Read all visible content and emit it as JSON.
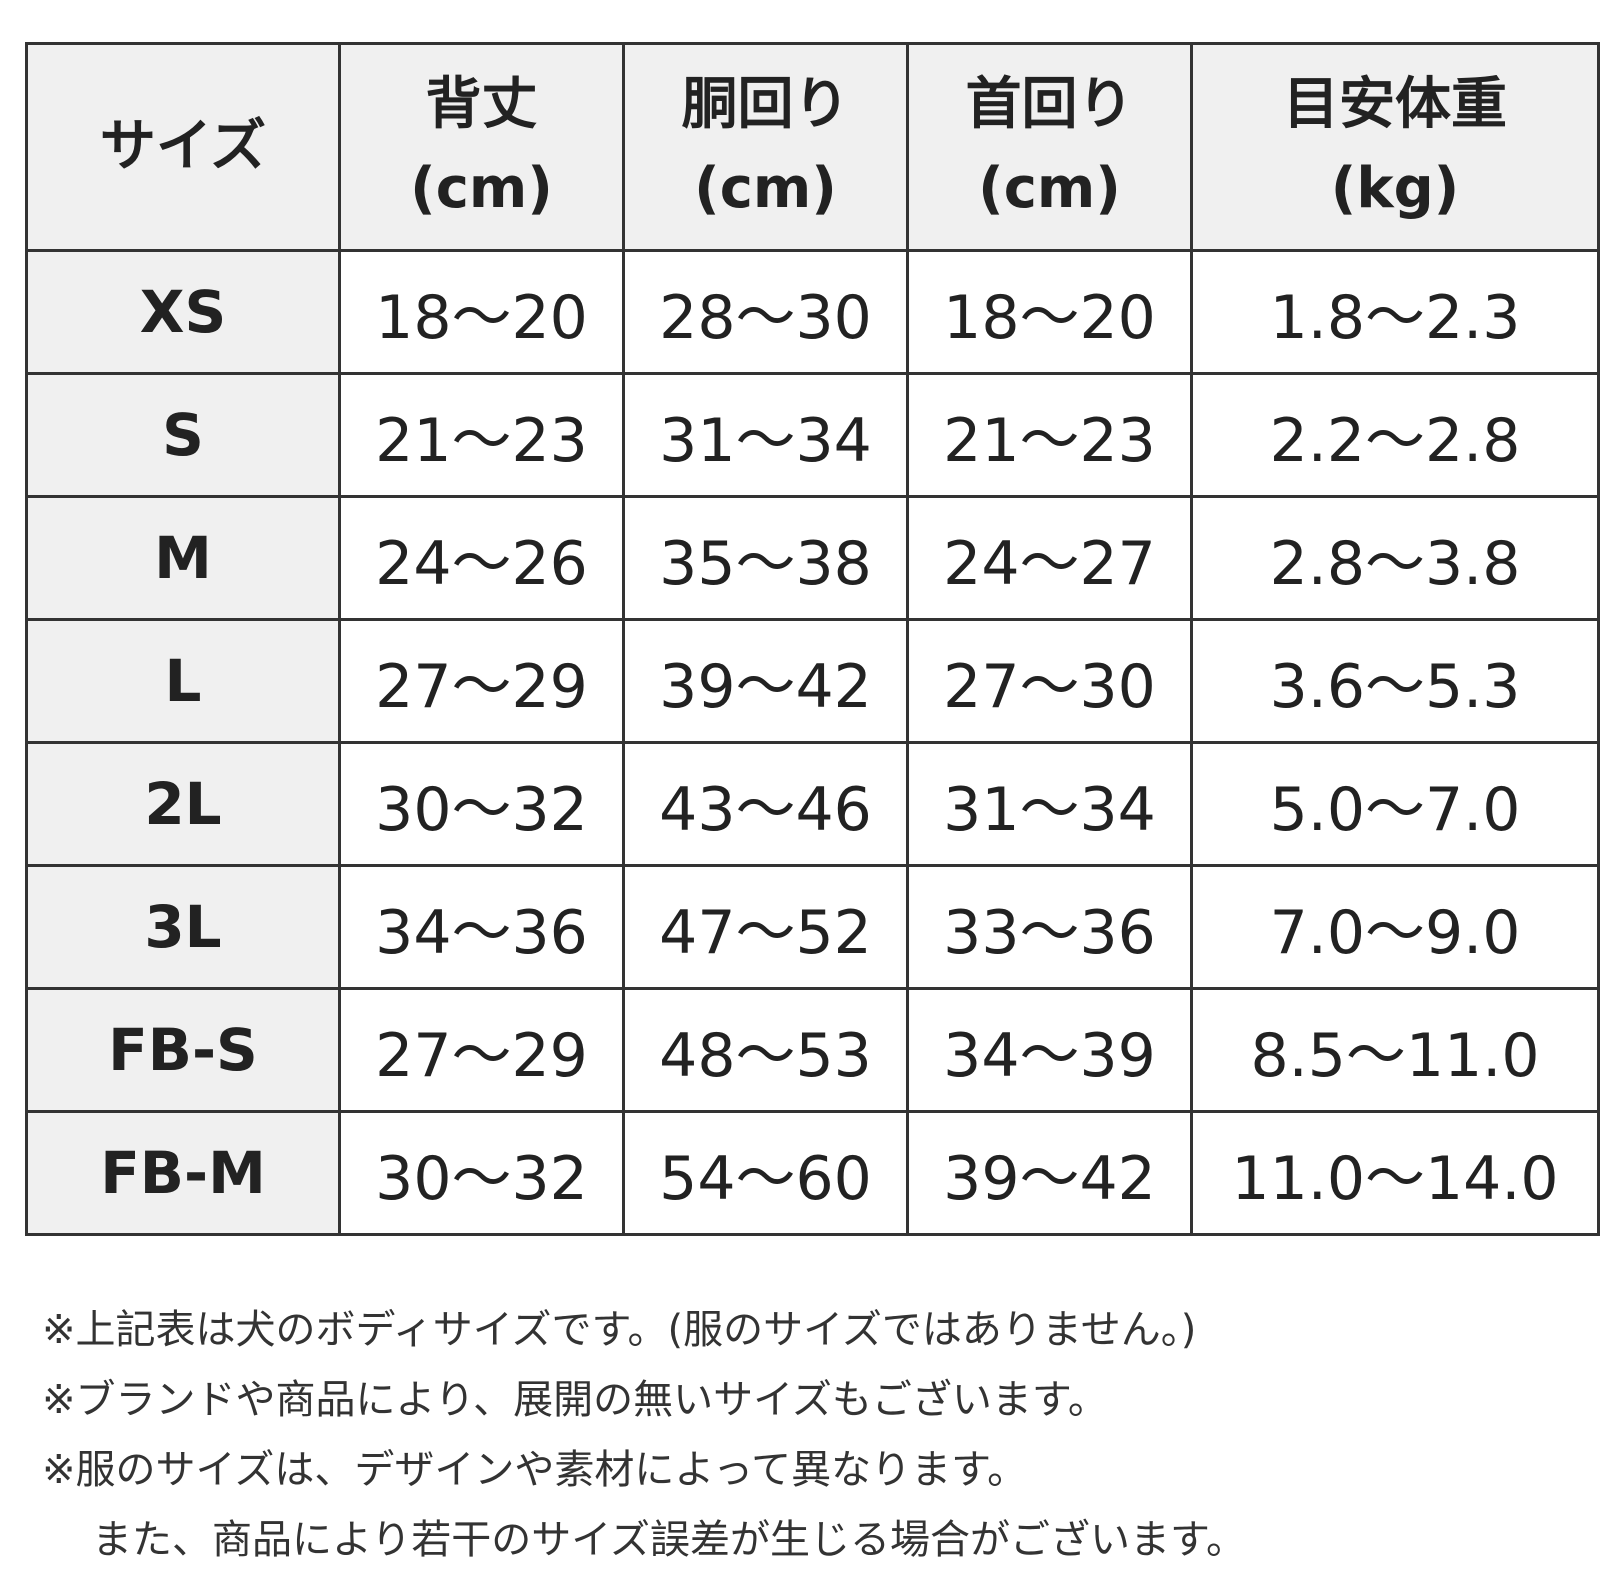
{
  "table": {
    "header": [
      {
        "label": "サイズ"
      },
      {
        "label": "背丈",
        "unit": "(cm)"
      },
      {
        "label": "胴回り",
        "unit": "(cm)"
      },
      {
        "label": "首回り",
        "unit": "(cm)"
      },
      {
        "label": "目安体重",
        "unit": "(kg)"
      }
    ],
    "rows": [
      [
        "XS",
        "18～20",
        "28～30",
        "18～20",
        "1.8～2.3"
      ],
      [
        "S",
        "21～23",
        "31～34",
        "21～23",
        "2.2～2.8"
      ],
      [
        "M",
        "24～26",
        "35～38",
        "24～27",
        "2.8～3.8"
      ],
      [
        "L",
        "27～29",
        "39～42",
        "27～30",
        "3.6～5.3"
      ],
      [
        "2L",
        "30～32",
        "43～46",
        "31～34",
        "5.0～7.0"
      ],
      [
        "3L",
        "34～36",
        "47～52",
        "33～36",
        "7.0～9.0"
      ],
      [
        "FB-S",
        "27～29",
        "48～53",
        "34～39",
        "8.5～11.0"
      ],
      [
        "FB-M",
        "30～32",
        "54～60",
        "39～42",
        "11.0～14.0"
      ]
    ]
  },
  "notes": [
    "※上記表は犬のボディサイズです。(服のサイズではありません。)",
    "※ブランドや商品により、展開の無いサイズもございます。",
    "※服のサイズは、デザインや素材によって異なります。",
    "また、商品により若干のサイズ誤差が生じる場合がございます。"
  ]
}
